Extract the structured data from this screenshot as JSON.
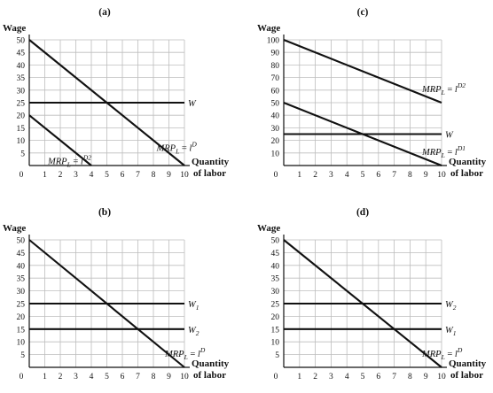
{
  "chart_data": [
    {
      "id": "a",
      "type": "line",
      "title": "(a)",
      "ylabel": "Wage",
      "xlabel": [
        "Quantity",
        "of labor"
      ],
      "origin_label": "0",
      "xlim": [
        0,
        10
      ],
      "ylim": [
        0,
        50
      ],
      "ytick_step": 5,
      "xticks": [
        "1",
        "2",
        "3",
        "4",
        "5",
        "6",
        "7",
        "8",
        "9",
        "10"
      ],
      "yticks": [
        "5",
        "10",
        "15",
        "20",
        "25",
        "30",
        "35",
        "40",
        "45",
        "50"
      ],
      "grid": true,
      "series": [
        {
          "name": "MRPL = lD",
          "label_main": "MRP",
          "label_sub": "L",
          "label_mid": " = ",
          "label_l": "l",
          "label_sup": "D",
          "x": [
            0,
            10
          ],
          "y": [
            50,
            0
          ],
          "label_at": "right-below"
        },
        {
          "name": "W",
          "label_main": "W",
          "label_sub": "",
          "label_mid": "",
          "label_l": "",
          "label_sup": "",
          "x": [
            0,
            10
          ],
          "y": [
            25,
            25
          ],
          "label_at": "right"
        },
        {
          "name": "MRPL = lD2",
          "label_main": "MRP",
          "label_sub": "L",
          "label_mid": " = ",
          "label_l": "l",
          "label_sup": "D2",
          "x": [
            0,
            4
          ],
          "y": [
            20,
            0
          ],
          "label_at": "right-below"
        }
      ]
    },
    {
      "id": "c",
      "type": "line",
      "title": "(c)",
      "ylabel": "Wage",
      "xlabel": [
        "Quantity",
        "of labor"
      ],
      "origin_label": "0",
      "xlim": [
        0,
        10
      ],
      "ylim": [
        0,
        100
      ],
      "ytick_step": 10,
      "xticks": [
        "1",
        "2",
        "3",
        "4",
        "5",
        "6",
        "7",
        "8",
        "9",
        "10"
      ],
      "yticks": [
        "10",
        "20",
        "30",
        "40",
        "50",
        "60",
        "70",
        "80",
        "90",
        "100"
      ],
      "grid": true,
      "series": [
        {
          "name": "MRPL = lD2",
          "label_main": "MRP",
          "label_sub": "L",
          "label_mid": " = ",
          "label_l": "l",
          "label_sup": "D2",
          "x": [
            0,
            10
          ],
          "y": [
            100,
            50
          ],
          "label_at": "right-above"
        },
        {
          "name": "W",
          "label_main": "W",
          "label_sub": "",
          "label_mid": "",
          "label_l": "",
          "label_sup": "",
          "x": [
            0,
            10
          ],
          "y": [
            25,
            25
          ],
          "label_at": "right"
        },
        {
          "name": "MRPL = lD1",
          "label_main": "MRP",
          "label_sub": "L",
          "label_mid": " = ",
          "label_l": "l",
          "label_sup": "D1",
          "x": [
            0,
            10
          ],
          "y": [
            50,
            0
          ],
          "label_at": "right-above"
        }
      ]
    },
    {
      "id": "b",
      "type": "line",
      "title": "(b)",
      "ylabel": "Wage",
      "xlabel": [
        "Quantity",
        "of labor"
      ],
      "origin_label": "0",
      "xlim": [
        0,
        10
      ],
      "ylim": [
        0,
        50
      ],
      "ytick_step": 5,
      "xticks": [
        "1",
        "2",
        "3",
        "4",
        "5",
        "6",
        "7",
        "8",
        "9",
        "10"
      ],
      "yticks": [
        "5",
        "10",
        "15",
        "20",
        "25",
        "30",
        "35",
        "40",
        "45",
        "50"
      ],
      "grid": true,
      "series": [
        {
          "name": "MRPL = lD",
          "label_main": "MRP",
          "label_sub": "L",
          "label_mid": " = ",
          "label_l": "l",
          "label_sup": "D",
          "x": [
            0,
            10
          ],
          "y": [
            50,
            0
          ],
          "label_at": "right-above"
        },
        {
          "name": "W1",
          "label_main": "W",
          "label_sub": "1",
          "label_mid": "",
          "label_l": "",
          "label_sup": "",
          "x": [
            0,
            10
          ],
          "y": [
            25,
            25
          ],
          "label_at": "right"
        },
        {
          "name": "W2",
          "label_main": "W",
          "label_sub": "2",
          "label_mid": "",
          "label_l": "",
          "label_sup": "",
          "x": [
            0,
            10
          ],
          "y": [
            15,
            15
          ],
          "label_at": "right"
        }
      ]
    },
    {
      "id": "d",
      "type": "line",
      "title": "(d)",
      "ylabel": "Wage",
      "xlabel": [
        "Quantity",
        "of labor"
      ],
      "origin_label": "0",
      "xlim": [
        0,
        10
      ],
      "ylim": [
        0,
        50
      ],
      "ytick_step": 5,
      "xticks": [
        "1",
        "2",
        "3",
        "4",
        "5",
        "6",
        "7",
        "8",
        "9",
        "10"
      ],
      "yticks": [
        "5",
        "10",
        "15",
        "20",
        "25",
        "30",
        "35",
        "40",
        "45",
        "50"
      ],
      "grid": true,
      "series": [
        {
          "name": "MRPL = lD",
          "label_main": "MRP",
          "label_sub": "L",
          "label_mid": " = ",
          "label_l": "l",
          "label_sup": "D",
          "x": [
            0,
            10
          ],
          "y": [
            50,
            0
          ],
          "label_at": "right-above"
        },
        {
          "name": "W2",
          "label_main": "W",
          "label_sub": "2",
          "label_mid": "",
          "label_l": "",
          "label_sup": "",
          "x": [
            0,
            10
          ],
          "y": [
            25,
            25
          ],
          "label_at": "right"
        },
        {
          "name": "W1",
          "label_main": "W",
          "label_sub": "1",
          "label_mid": "",
          "label_l": "",
          "label_sup": "",
          "x": [
            0,
            10
          ],
          "y": [
            15,
            15
          ],
          "label_at": "right"
        }
      ]
    }
  ]
}
